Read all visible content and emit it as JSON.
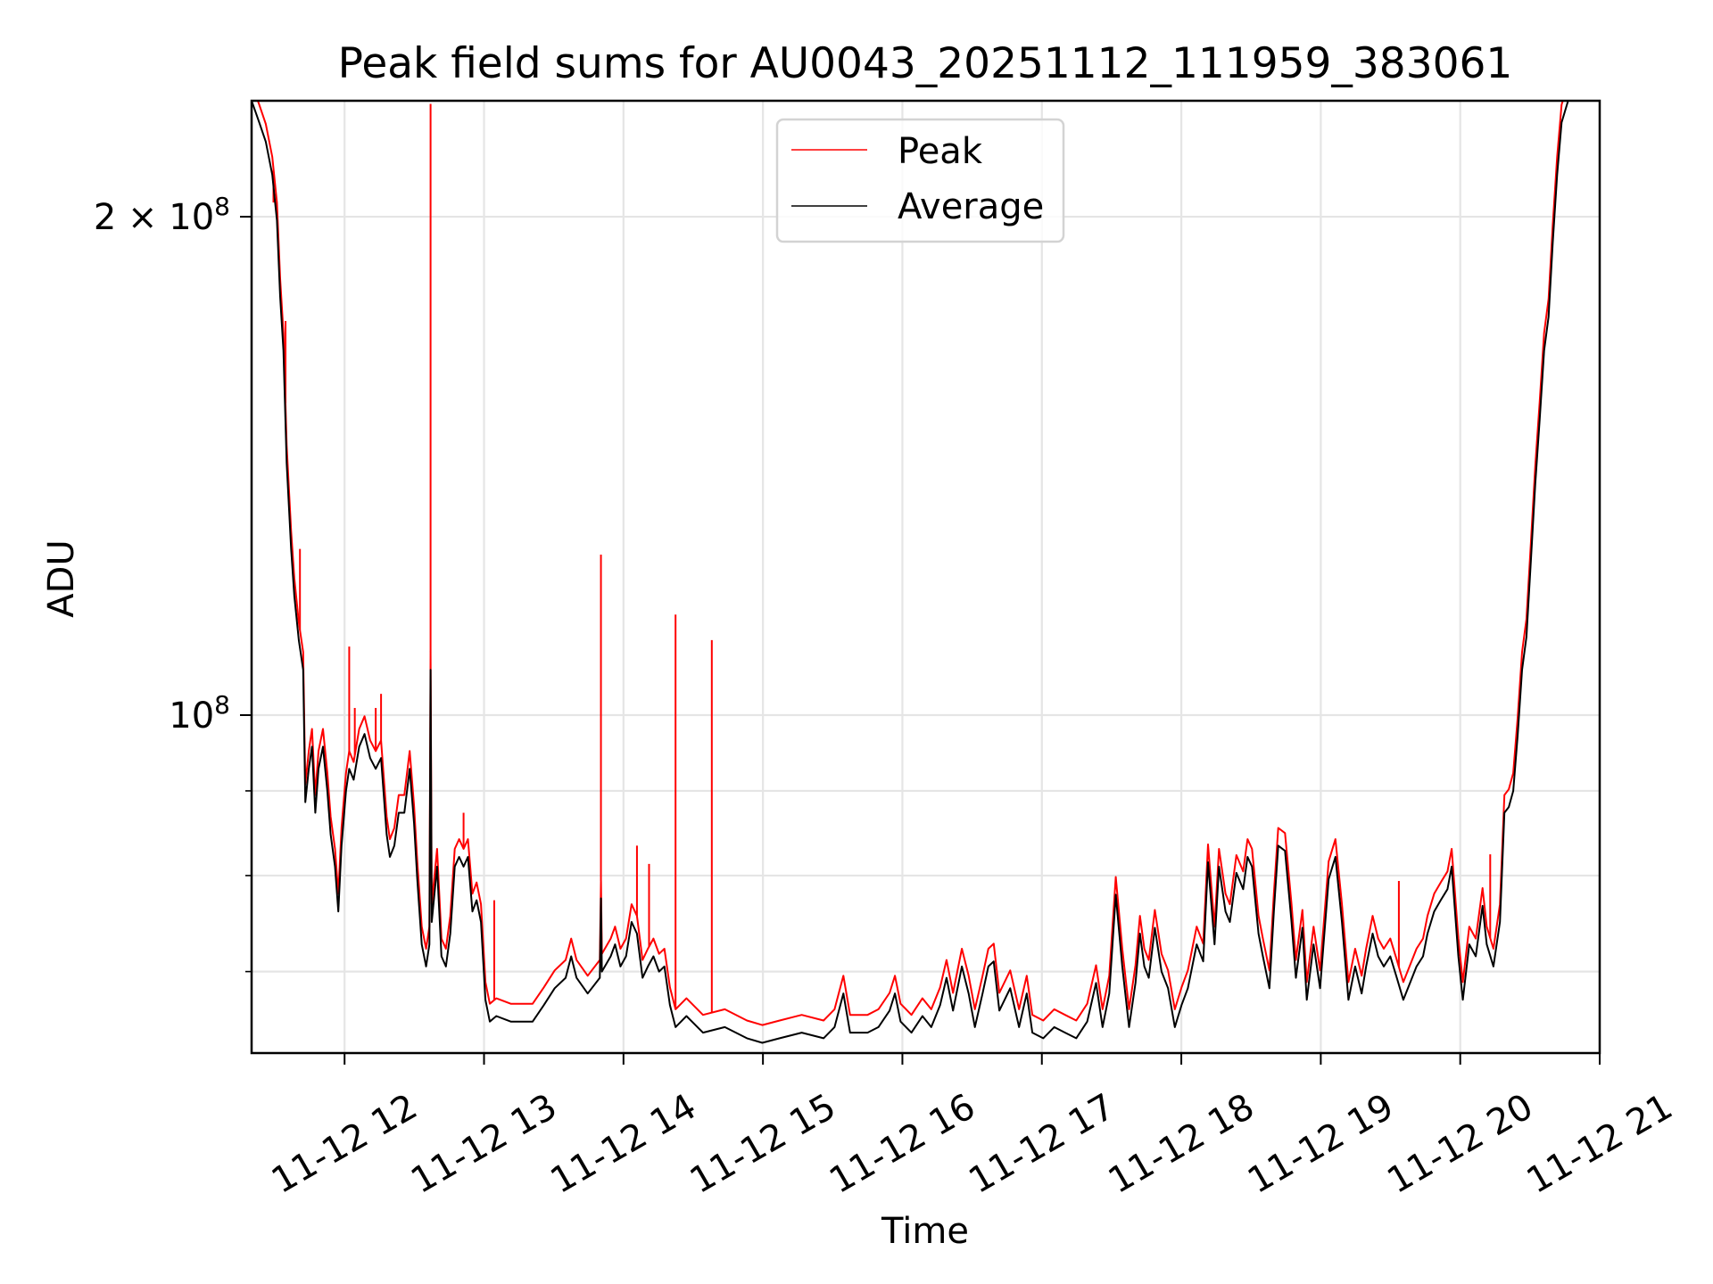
{
  "chart_data": {
    "type": "line",
    "title": "Peak field sums for AU0043_20251112_111959_383061",
    "xlabel": "Time",
    "ylabel": "ADU",
    "x_unit": "minutes after 11-12 11:00",
    "y_unit": "ADU (millions)",
    "yscale": "log",
    "xlim": [
      20,
      600
    ],
    "ylim": [
      62.5,
      235
    ],
    "grid": true,
    "legend_placement": "upper-center",
    "xticks": [
      {
        "value": 60,
        "label": "11-12 12"
      },
      {
        "value": 120,
        "label": "11-12 13"
      },
      {
        "value": 180,
        "label": "11-12 14"
      },
      {
        "value": 240,
        "label": "11-12 15"
      },
      {
        "value": 300,
        "label": "11-12 16"
      },
      {
        "value": 360,
        "label": "11-12 17"
      },
      {
        "value": 420,
        "label": "11-12 18"
      },
      {
        "value": 480,
        "label": "11-12 19"
      },
      {
        "value": 540,
        "label": "11-12 20"
      },
      {
        "value": 600,
        "label": "11-12 21"
      }
    ],
    "yticks": [
      {
        "value": 200,
        "base": "2 × 10",
        "exp": "8"
      },
      {
        "value": 100,
        "base": "10",
        "exp": "8"
      }
    ],
    "yminor": [
      90,
      80,
      70
    ],
    "series": [
      {
        "name": "Peak",
        "color": "#ff0000",
        "ratio_to_average": 1.025,
        "spikes": [
          [
            29.4,
            204
          ],
          [
            34.6,
            173
          ],
          [
            40.8,
            126
          ],
          [
            62.0,
            110
          ],
          [
            64.4,
            101
          ],
          [
            73.4,
            101
          ],
          [
            75.7,
            103
          ],
          [
            97.0,
            234
          ],
          [
            111.2,
            87.3
          ],
          [
            124.4,
            77.3
          ],
          [
            170.3,
            125
          ],
          [
            185.8,
            83.4
          ],
          [
            191.0,
            81.3
          ],
          [
            202.4,
            115
          ],
          [
            218.0,
            111
          ],
          [
            513.6,
            79.4
          ],
          [
            552.9,
            82.4
          ]
        ]
      },
      {
        "name": "Average",
        "color": "#000000",
        "points": [
          [
            20.0,
            235
          ],
          [
            23.3,
            228
          ],
          [
            26.1,
            222
          ],
          [
            28.9,
            212
          ],
          [
            30.9,
            199
          ],
          [
            32.3,
            179
          ],
          [
            33.7,
            166
          ],
          [
            35.1,
            142
          ],
          [
            37.0,
            126
          ],
          [
            38.4,
            118
          ],
          [
            40.3,
            111
          ],
          [
            42.2,
            106.5
          ],
          [
            43.1,
            88.6
          ],
          [
            44.6,
            92.8
          ],
          [
            46.0,
            95.7
          ],
          [
            47.4,
            87.3
          ],
          [
            48.8,
            92.8
          ],
          [
            50.7,
            95.7
          ],
          [
            52.6,
            90
          ],
          [
            54.0,
            84.7
          ],
          [
            55.9,
            81
          ],
          [
            57.3,
            76.1
          ],
          [
            58.7,
            83.4
          ],
          [
            60.6,
            90
          ],
          [
            62.0,
            92.8
          ],
          [
            63.9,
            91.4
          ],
          [
            66.3,
            95.7
          ],
          [
            68.6,
            97.4
          ],
          [
            71.0,
            94.2
          ],
          [
            73.4,
            92.8
          ],
          [
            75.7,
            94.2
          ],
          [
            78.1,
            84.7
          ],
          [
            79.5,
            82.1
          ],
          [
            81.4,
            83.4
          ],
          [
            83.3,
            87.3
          ],
          [
            85.7,
            87.3
          ],
          [
            88.0,
            92.8
          ],
          [
            89.9,
            86
          ],
          [
            91.3,
            79.6
          ],
          [
            93.2,
            72.7
          ],
          [
            95.1,
            70.5
          ],
          [
            96.5,
            72.7
          ],
          [
            97.0,
            106.5
          ],
          [
            97.5,
            75
          ],
          [
            99.8,
            81
          ],
          [
            101.7,
            71.5
          ],
          [
            103.6,
            70.5
          ],
          [
            105.5,
            73.8
          ],
          [
            107.4,
            81
          ],
          [
            109.3,
            82.1
          ],
          [
            111.2,
            81
          ],
          [
            113.1,
            82.1
          ],
          [
            115.0,
            76.1
          ],
          [
            116.8,
            77.3
          ],
          [
            118.7,
            75
          ],
          [
            120.6,
            67.3
          ],
          [
            122.5,
            65.3
          ],
          [
            125.3,
            65.8
          ],
          [
            131.5,
            65.3
          ],
          [
            140.9,
            65.3
          ],
          [
            145.7,
            66.8
          ],
          [
            150.4,
            68.4
          ],
          [
            155.1,
            69.4
          ],
          [
            157.5,
            71.5
          ],
          [
            159.8,
            69.4
          ],
          [
            164.6,
            67.9
          ],
          [
            169.8,
            69.4
          ],
          [
            170.3,
            77.5
          ],
          [
            170.7,
            70
          ],
          [
            174.5,
            71.5
          ],
          [
            176.4,
            72.7
          ],
          [
            178.7,
            70.5
          ],
          [
            181.1,
            71.5
          ],
          [
            183.5,
            75
          ],
          [
            185.8,
            73.8
          ],
          [
            188.2,
            69.4
          ],
          [
            190.5,
            70.5
          ],
          [
            192.9,
            71.5
          ],
          [
            195.3,
            70
          ],
          [
            197.6,
            70.5
          ],
          [
            200.0,
            66.8
          ],
          [
            202.4,
            64.8
          ],
          [
            207.1,
            65.8
          ],
          [
            214.2,
            64.3
          ],
          [
            223.6,
            64.8
          ],
          [
            233.1,
            63.8
          ],
          [
            239.7,
            63.4
          ],
          [
            247.2,
            63.8
          ],
          [
            256.7,
            64.3
          ],
          [
            266.1,
            63.8
          ],
          [
            270.8,
            64.8
          ],
          [
            274.6,
            67.9
          ],
          [
            277.5,
            64.3
          ],
          [
            285.0,
            64.3
          ],
          [
            289.7,
            64.8
          ],
          [
            294.5,
            66.3
          ],
          [
            296.8,
            67.9
          ],
          [
            299.2,
            65.3
          ],
          [
            303.9,
            64.3
          ],
          [
            308.6,
            65.8
          ],
          [
            312.4,
            64.8
          ],
          [
            316.2,
            66.8
          ],
          [
            319.0,
            69.4
          ],
          [
            321.8,
            66.3
          ],
          [
            325.6,
            70.5
          ],
          [
            328.5,
            67.9
          ],
          [
            331.2,
            64.8
          ],
          [
            334.5,
            67.9
          ],
          [
            337.0,
            70.5
          ],
          [
            339.3,
            71
          ],
          [
            341.7,
            66.3
          ],
          [
            346.4,
            68.4
          ],
          [
            350.2,
            64.8
          ],
          [
            353.5,
            67.9
          ],
          [
            355.9,
            64.3
          ],
          [
            360.6,
            63.8
          ],
          [
            365.3,
            64.8
          ],
          [
            370.0,
            64.3
          ],
          [
            374.8,
            63.8
          ],
          [
            379.5,
            65.3
          ],
          [
            383.3,
            68.9
          ],
          [
            386.1,
            64.8
          ],
          [
            389.0,
            67.9
          ],
          [
            391.8,
            77.9
          ],
          [
            394.6,
            70.5
          ],
          [
            397.5,
            64.8
          ],
          [
            400.3,
            68.9
          ],
          [
            402.2,
            73.8
          ],
          [
            404.1,
            70.5
          ],
          [
            406.0,
            69.4
          ],
          [
            408.6,
            74.4
          ],
          [
            411.5,
            70
          ],
          [
            414.3,
            68.4
          ],
          [
            417.2,
            64.8
          ],
          [
            420.1,
            66.8
          ],
          [
            422.8,
            68.4
          ],
          [
            424.7,
            70.5
          ],
          [
            426.6,
            72.7
          ],
          [
            429.4,
            71
          ],
          [
            431.5,
            81.5
          ],
          [
            434.3,
            72.7
          ],
          [
            436.2,
            81
          ],
          [
            439.0,
            76.1
          ],
          [
            440.9,
            75
          ],
          [
            443.7,
            80.3
          ],
          [
            446.6,
            78.5
          ],
          [
            448.5,
            82.1
          ],
          [
            450.4,
            81
          ],
          [
            453.2,
            73.8
          ],
          [
            455.1,
            71.5
          ],
          [
            457.9,
            68.4
          ],
          [
            459.8,
            76.1
          ],
          [
            461.7,
            83.4
          ],
          [
            464.6,
            82.8
          ],
          [
            467.4,
            75
          ],
          [
            469.3,
            69.4
          ],
          [
            472.1,
            74.4
          ],
          [
            474.0,
            67.3
          ],
          [
            476.9,
            72.7
          ],
          [
            479.7,
            68.4
          ],
          [
            483.4,
            79.6
          ],
          [
            486.3,
            82.1
          ],
          [
            489.1,
            75
          ],
          [
            491.9,
            67.3
          ],
          [
            494.8,
            70.5
          ],
          [
            497.6,
            67.9
          ],
          [
            499.5,
            70.5
          ],
          [
            502.3,
            73.8
          ],
          [
            504.7,
            71.5
          ],
          [
            507.1,
            70.5
          ],
          [
            509.9,
            71.5
          ],
          [
            512.7,
            69.4
          ],
          [
            515.5,
            67.3
          ],
          [
            518.4,
            68.9
          ],
          [
            521.2,
            70.5
          ],
          [
            524.0,
            71.5
          ],
          [
            525.9,
            73.8
          ],
          [
            528.8,
            76.1
          ],
          [
            531.6,
            77.3
          ],
          [
            534.5,
            78.5
          ],
          [
            536.3,
            81
          ],
          [
            539.2,
            71.5
          ],
          [
            541.1,
            67.3
          ],
          [
            543.9,
            72.7
          ],
          [
            546.7,
            71.5
          ],
          [
            549.6,
            76.7
          ],
          [
            551.4,
            72.7
          ],
          [
            554.3,
            70.5
          ],
          [
            557.1,
            75
          ],
          [
            559.0,
            87.3
          ],
          [
            560.9,
            88
          ],
          [
            562.8,
            90
          ],
          [
            564.7,
            97.1
          ],
          [
            566.6,
            106.5
          ],
          [
            568.5,
            111.5
          ],
          [
            570.4,
            124
          ],
          [
            572.3,
            138
          ],
          [
            574.2,
            151
          ],
          [
            576.1,
            166
          ],
          [
            578.0,
            174
          ],
          [
            579.8,
            193
          ],
          [
            581.7,
            212
          ],
          [
            583.6,
            228
          ],
          [
            586.4,
            235
          ],
          [
            600,
            240
          ]
        ]
      }
    ]
  },
  "legend": {
    "items": [
      {
        "label": "Peak",
        "color": "#ff0000"
      },
      {
        "label": "Average",
        "color": "#000000"
      }
    ]
  }
}
